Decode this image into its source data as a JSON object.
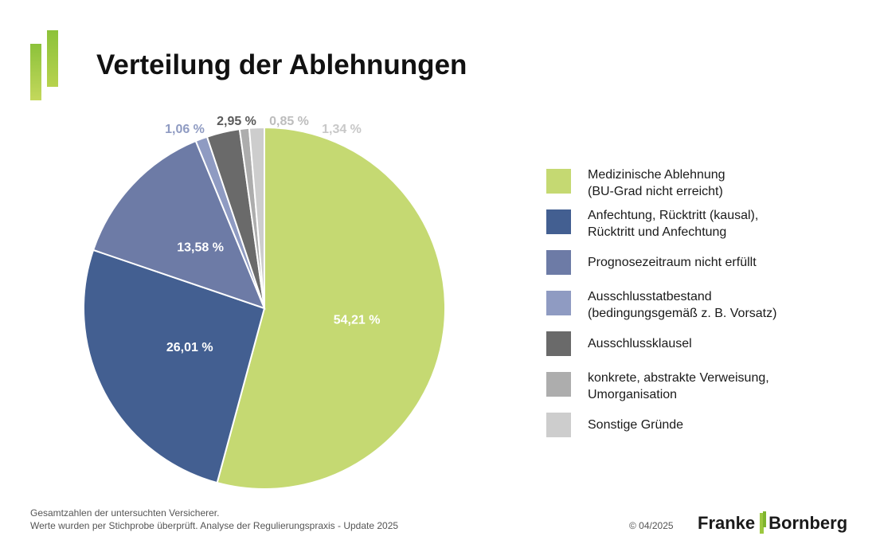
{
  "title": "Verteilung der Ablehnungen",
  "chart_data": {
    "type": "pie",
    "title": "Verteilung der Ablehnungen",
    "slices": [
      {
        "label": "Medizinische Ablehnung\n(BU-Grad nicht erreicht)",
        "value": 54.21,
        "display": "54,21 %",
        "color": "#c5d972"
      },
      {
        "label": "Anfechtung, Rücktritt (kausal),\nRücktritt und Anfechtung",
        "value": 26.01,
        "display": "26,01 %",
        "color": "#435f91"
      },
      {
        "label": "Prognosezeitraum nicht erfüllt",
        "value": 13.58,
        "display": "13,58 %",
        "color": "#6d7ba6"
      },
      {
        "label": "Ausschlusstatbestand\n(bedingungsgemäß z. B. Vorsatz)",
        "value": 1.06,
        "display": "1,06 %",
        "color": "#8f9bc2"
      },
      {
        "label": "Ausschlussklausel",
        "value": 2.95,
        "display": "2,95 %",
        "color": "#6a6a6a"
      },
      {
        "label": "konkrete, abstrakte Verweisung,\nUmorganisation",
        "value": 0.85,
        "display": "0,85 %",
        "color": "#adadad"
      },
      {
        "label": "Sonstige Gründe",
        "value": 1.34,
        "display": "1,34 %",
        "color": "#cdcdcd"
      }
    ],
    "legend_placement": "right"
  },
  "footer": {
    "line1": "Gesamtzahlen der untersuchten Versicherer.",
    "line2": "Werte wurden per Stichprobe überprüft. Analyse der Regulierungspraxis - Update 2025"
  },
  "copyright": "© 04/2025",
  "brand": {
    "left": "Franke",
    "right": "Bornberg"
  }
}
